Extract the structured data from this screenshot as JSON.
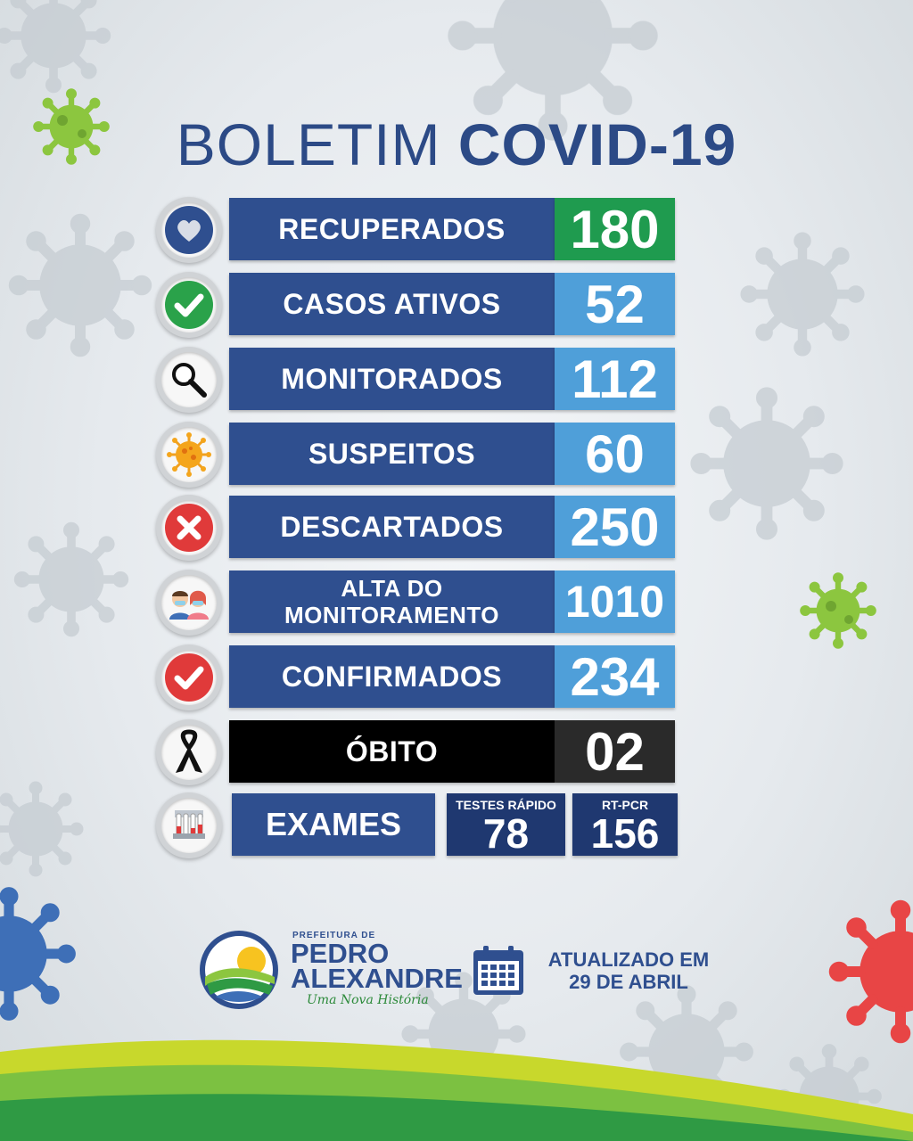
{
  "title": {
    "light": "BOLETIM",
    "bold": "COVID-19"
  },
  "stats": [
    {
      "icon": "heart-icon",
      "label": "RECUPERADOS",
      "value": "180",
      "value_color": "#1f9b4f"
    },
    {
      "icon": "checkmark-icon",
      "label": "CASOS ATIVOS",
      "value": "52",
      "value_color": "#4f9fd9"
    },
    {
      "icon": "magnifier-icon",
      "label": "MONITORADOS",
      "value": "112",
      "value_color": "#4f9fd9"
    },
    {
      "icon": "virus-icon",
      "label": "SUSPEITOS",
      "value": "60",
      "value_color": "#4f9fd9"
    },
    {
      "icon": "x-mark-icon",
      "label": "DESCARTADOS",
      "value": "250",
      "value_color": "#4f9fd9"
    },
    {
      "icon": "patients-icon",
      "label_line1": "ALTA DO",
      "label_line2": "MONITORAMENTO",
      "value": "1010",
      "value_color": "#4f9fd9"
    },
    {
      "icon": "red-check-icon",
      "label": "CONFIRMADOS",
      "value": "234",
      "value_color": "#4f9fd9"
    },
    {
      "icon": "mourning-ribbon-icon",
      "label": "ÓBITO",
      "value": "02",
      "label_bg": "#000000",
      "value_color": "#2a2a2a"
    }
  ],
  "exams": {
    "icon": "test-tubes-icon",
    "label": "EXAMES",
    "rapid": {
      "caption": "TESTES RÁPIDO",
      "value": "78"
    },
    "pcr": {
      "caption": "RT-PCR",
      "value": "156"
    }
  },
  "logo": {
    "prefix": "PREFEITURA DE",
    "line1": "PEDRO",
    "line2": "ALEXANDRE",
    "slogan": "Uma Nova História"
  },
  "updated": {
    "line1": "ATUALIZADO EM",
    "line2": "29 DE ABRIL"
  },
  "colors": {
    "navy": "#2f4f8f",
    "light_blue": "#4f9fd9",
    "green": "#1f9b4f",
    "black": "#000000"
  }
}
